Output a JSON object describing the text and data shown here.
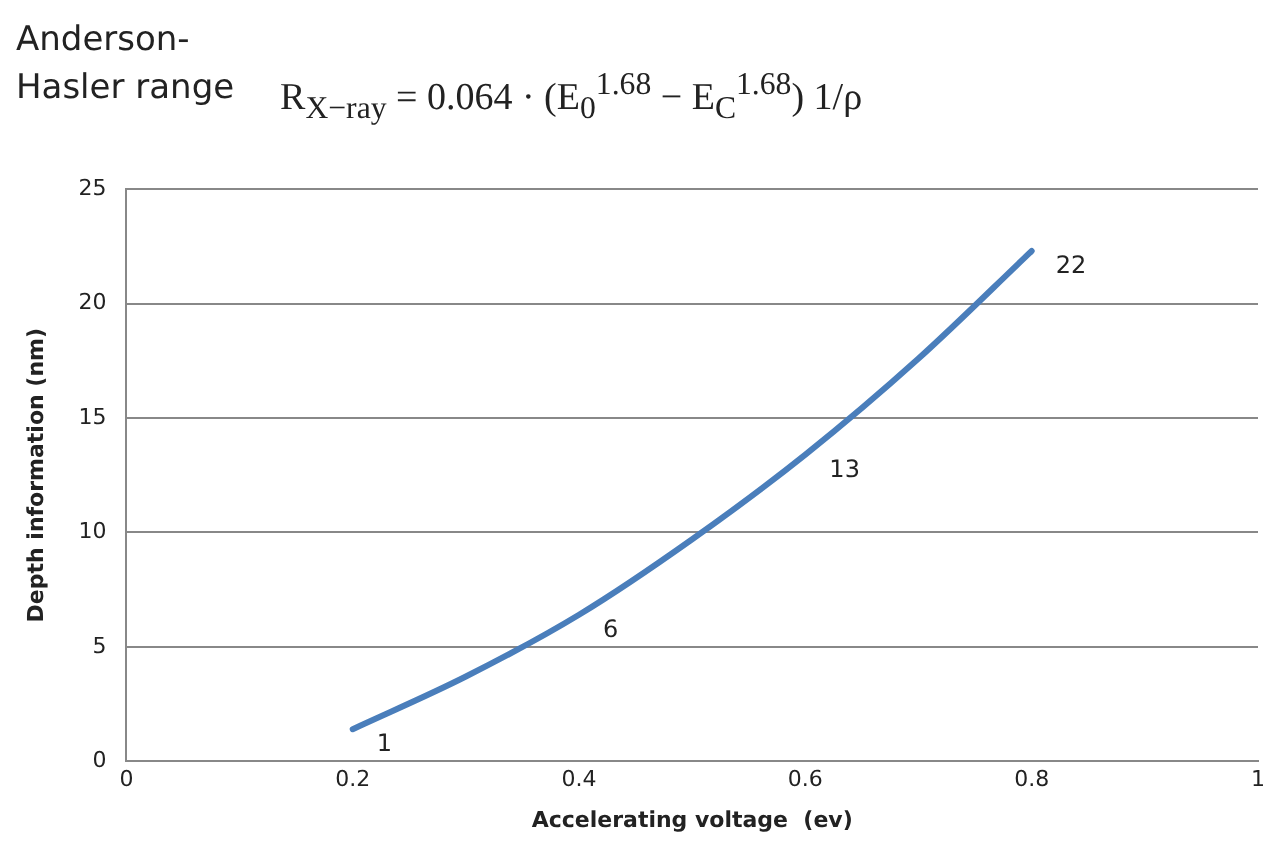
{
  "chart_data": {
    "type": "line",
    "title": "Anderson-Hasler range",
    "subtitle": "R$_{X−ray}$ = 0.064 · (E$_{0}$$^{1.68}$ − E$_{C}$$^{1.68}$) 1/ρ",
    "xlabel": "Accelerating voltage  (ev)",
    "ylabel": "Depth information (nm)",
    "x": [
      0.2,
      0.3,
      0.4,
      0.5,
      0.6,
      0.7,
      0.8
    ],
    "series": [
      {
        "color": "#4a7ebb",
        "values": [
          1.4,
          3.7,
          6.4,
          9.7,
          13.4,
          17.6,
          22.3
        ],
        "value_labels": [
          "1",
          null,
          "6",
          null,
          "13",
          null,
          "22"
        ]
      }
    ],
    "xlim": [
      0,
      1
    ],
    "xticks": [
      0,
      0.2,
      0.4,
      0.6,
      0.8,
      1
    ],
    "ylim": [
      0,
      25
    ],
    "yticks": [
      0,
      5,
      10,
      15,
      20,
      25
    ],
    "grid": "y",
    "legend": false,
    "marker": "none",
    "line_style": "solid"
  }
}
